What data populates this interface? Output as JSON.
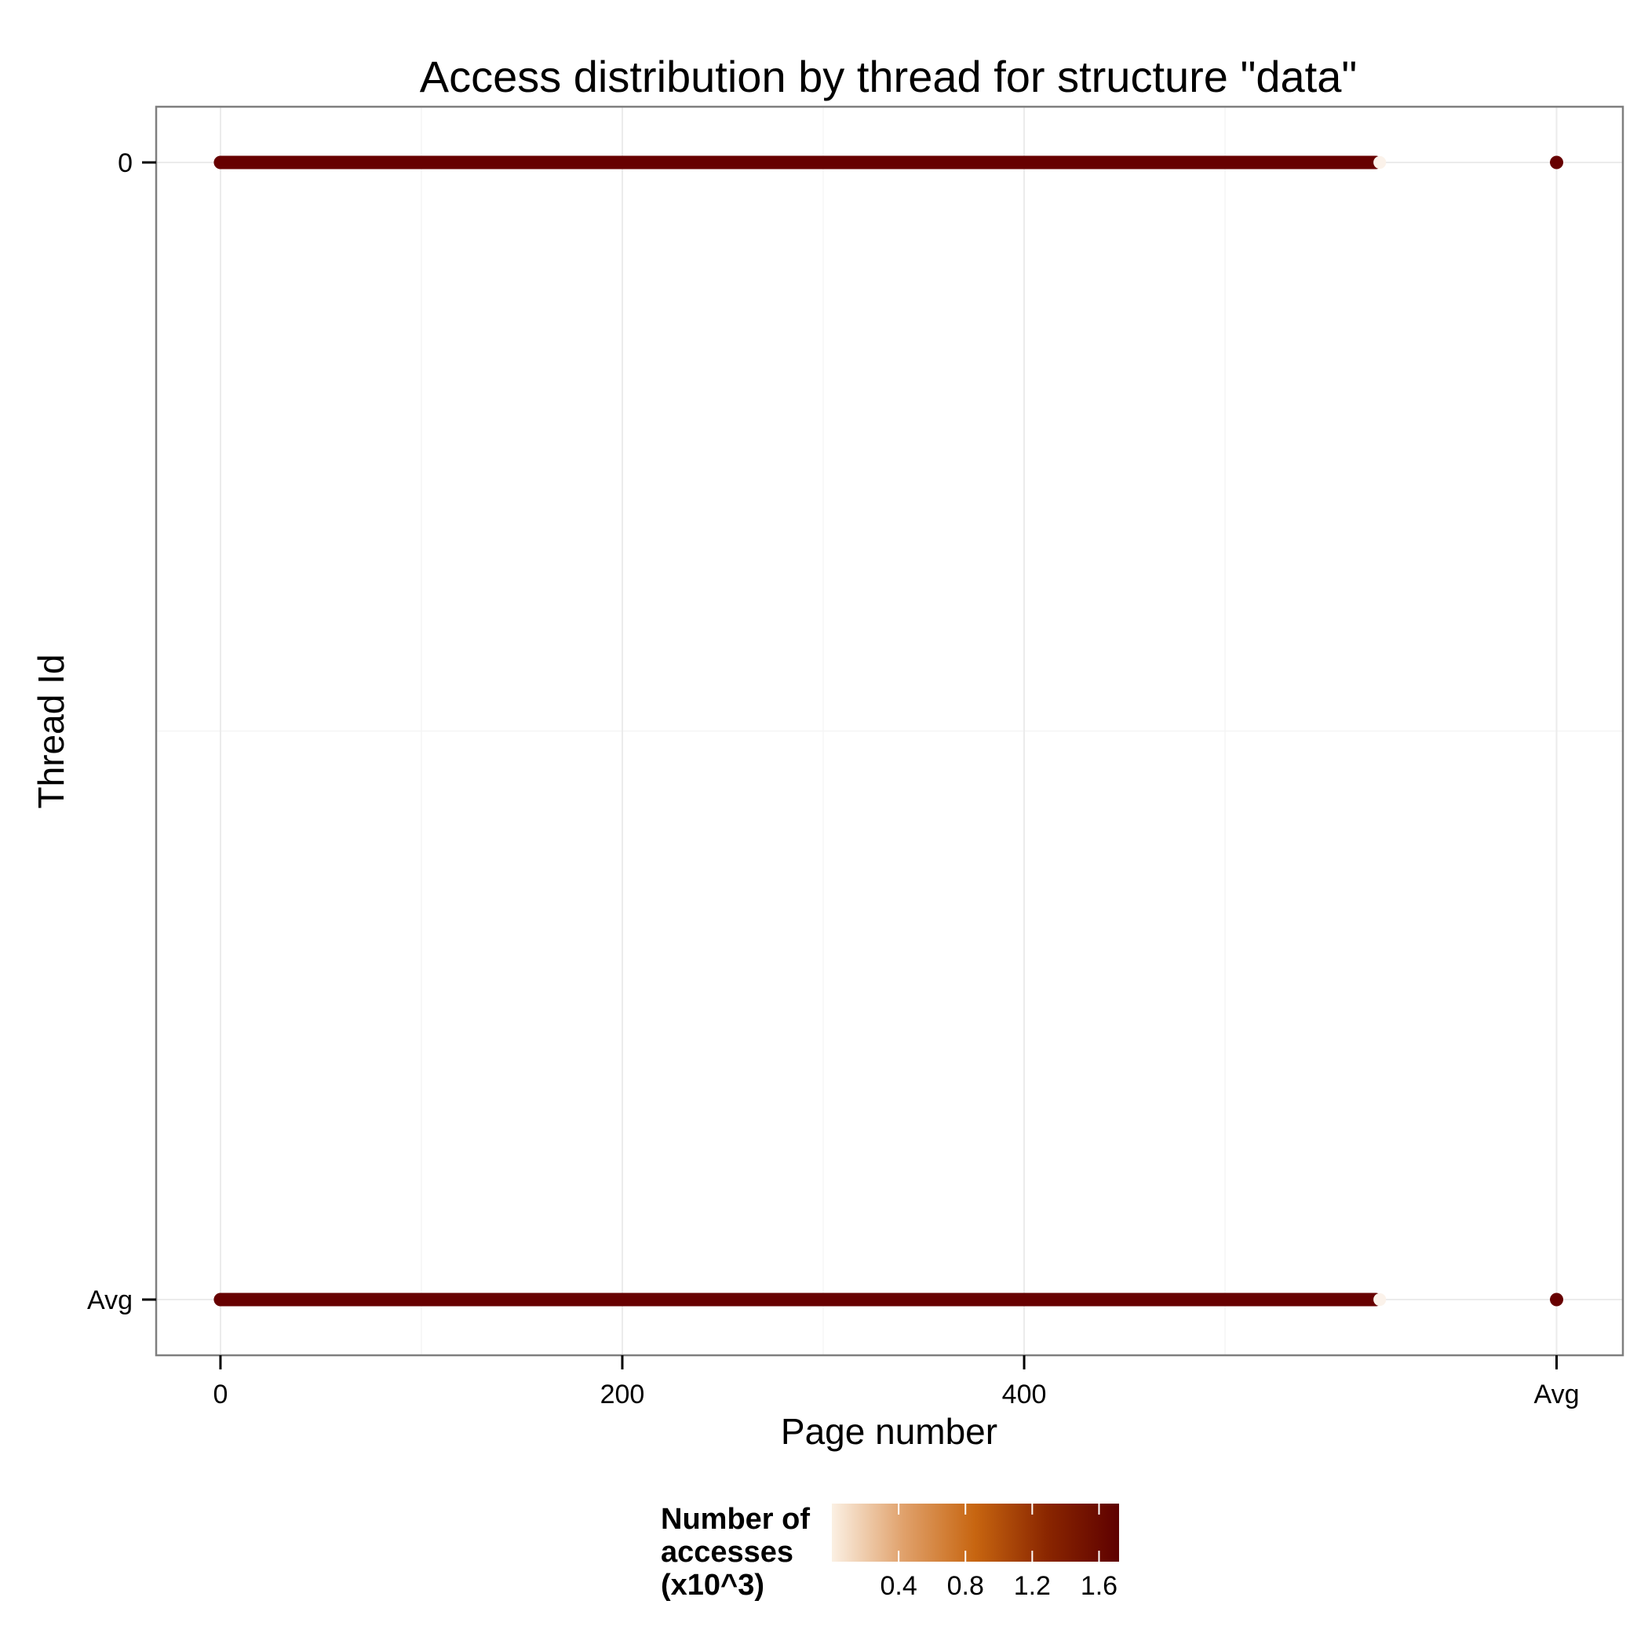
{
  "chart_data": {
    "type": "scatter",
    "title": "Access distribution by thread for structure \"data\"",
    "xlabel": "Page number",
    "ylabel": "Thread Id",
    "x_ticks": [
      "0",
      "200",
      "400",
      "Avg"
    ],
    "y_ticks": [
      "0",
      "Avg"
    ],
    "x_tick_values": [
      0,
      200,
      400,
      665
    ],
    "xlim": [
      -32,
      698
    ],
    "grid": true,
    "series": [
      {
        "row": "0",
        "page_range": [
          0,
          575
        ],
        "avg_value": 1.68,
        "color": "#670000"
      },
      {
        "row": "Avg",
        "page_range": [
          0,
          575
        ],
        "avg_value": 1.68,
        "color": "#670000"
      }
    ],
    "legend": {
      "title_lines": [
        "Number of",
        "accesses",
        "(x10^3)"
      ],
      "tick_labels": [
        "0.4",
        "0.8",
        "1.2",
        "1.6"
      ],
      "tick_values": [
        0.4,
        0.8,
        1.2,
        1.6
      ],
      "range": [
        0,
        1.72
      ],
      "colors": [
        "#fbf0e3",
        "#e0a16b",
        "#c76510",
        "#8a2600",
        "#5e0000"
      ],
      "placement": "bottom"
    }
  }
}
